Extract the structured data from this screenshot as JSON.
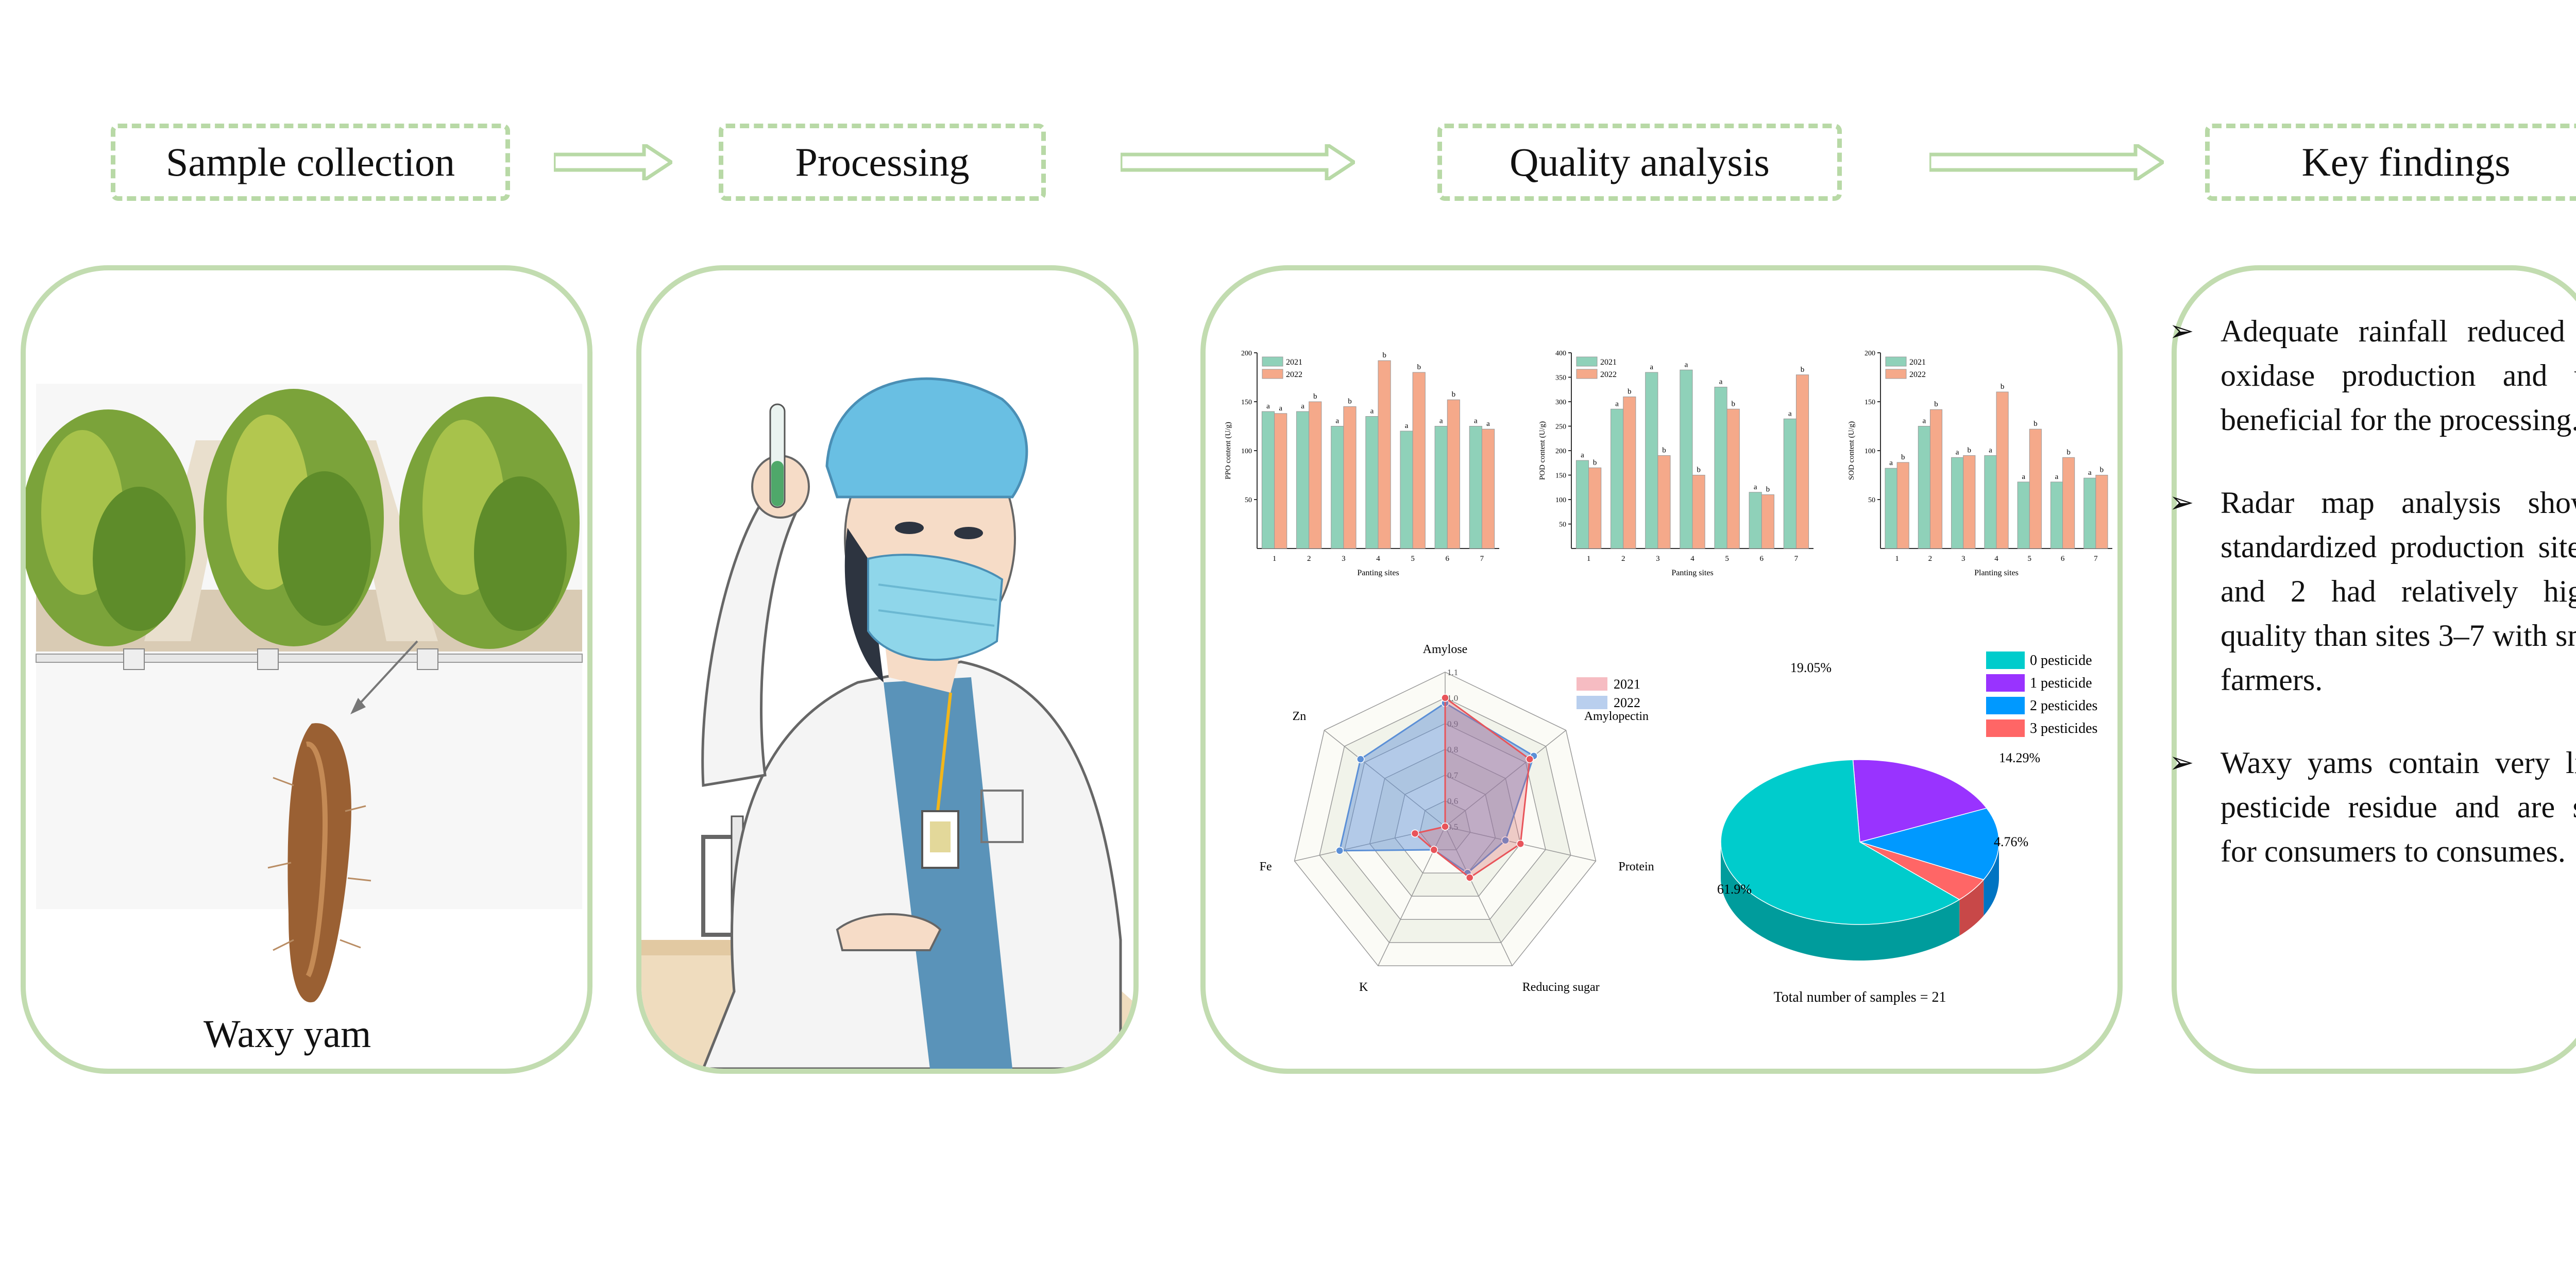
{
  "headers": [
    "Sample collection",
    "Processing",
    "Quality analysis",
    "Key findings"
  ],
  "yam_caption": "Waxy yam",
  "findings": [
    "Adequate rainfall reduced the oxidase production and was beneficial for the processing.",
    "Radar map analysis showed standardized production sites 1 and 2 had relatively higher quality than sites 3–7 with small farmers.",
    "Waxy yams contain very little pesticide residue and are safe for consumers to consumes."
  ],
  "colors": {
    "border": "#c2dcb0",
    "header_dash": "#b8d9a6",
    "bar_2021": "#8fd1b9",
    "bar_2022": "#f5a98a",
    "radar_2021": "#e8545a",
    "radar_2022": "#5b8fd6"
  },
  "chart_data": [
    {
      "type": "bar",
      "title": "",
      "xlabel": "Panting sites",
      "ylabel": "PPO content (U/g)",
      "ylim": [
        0,
        200
      ],
      "yticks": [
        50,
        100,
        150,
        200
      ],
      "categories": [
        "1",
        "2",
        "3",
        "4",
        "5",
        "6",
        "7"
      ],
      "series": [
        {
          "name": "2021",
          "values": [
            140,
            140,
            125,
            135,
            120,
            125,
            125
          ],
          "letters": [
            "a",
            "a",
            "a",
            "a",
            "a",
            "a",
            "a"
          ]
        },
        {
          "name": "2022",
          "values": [
            138,
            150,
            145,
            192,
            180,
            152,
            122
          ],
          "letters": [
            "a",
            "b",
            "b",
            "b",
            "b",
            "b",
            "a"
          ]
        }
      ]
    },
    {
      "type": "bar",
      "title": "",
      "xlabel": "Panting sites",
      "ylabel": "POD content (U/g)",
      "ylim": [
        0,
        400
      ],
      "yticks": [
        50,
        100,
        150,
        200,
        250,
        300,
        350,
        400
      ],
      "categories": [
        "1",
        "2",
        "3",
        "4",
        "5",
        "6",
        "7"
      ],
      "series": [
        {
          "name": "2021",
          "values": [
            180,
            285,
            360,
            365,
            330,
            115,
            265
          ],
          "letters": [
            "a",
            "a",
            "a",
            "a",
            "a",
            "a",
            "a"
          ]
        },
        {
          "name": "2022",
          "values": [
            165,
            310,
            190,
            150,
            285,
            110,
            355
          ],
          "letters": [
            "b",
            "b",
            "b",
            "b",
            "b",
            "b",
            "b"
          ]
        }
      ]
    },
    {
      "type": "bar",
      "title": "",
      "xlabel": "Planting sites",
      "ylabel": "SOD content (U/g)",
      "ylim": [
        0,
        200
      ],
      "yticks": [
        50,
        100,
        150,
        200
      ],
      "categories": [
        "1",
        "2",
        "3",
        "4",
        "5",
        "6",
        "7"
      ],
      "series": [
        {
          "name": "2021",
          "values": [
            82,
            125,
            93,
            95,
            68,
            68,
            72
          ],
          "letters": [
            "a",
            "a",
            "a",
            "a",
            "a",
            "a",
            "a"
          ]
        },
        {
          "name": "2022",
          "values": [
            88,
            142,
            95,
            160,
            122,
            93,
            75
          ],
          "letters": [
            "b",
            "b",
            "b",
            "b",
            "b",
            "b",
            "b"
          ]
        }
      ]
    },
    {
      "type": "radar",
      "title": "",
      "axes": [
        "Amylose",
        "Amylopectin",
        "Protein",
        "Reducing sugar",
        "K",
        "Fe",
        "Zn"
      ],
      "rlim": [
        0.5,
        1.1
      ],
      "rticks": [
        "0.5",
        "0.6",
        "0.7",
        "0.8",
        "0.9",
        "1.0",
        "1.1"
      ],
      "series": [
        {
          "name": "2021",
          "values": [
            1.0,
            0.92,
            0.8,
            0.72,
            0.6,
            0.62,
            0.5
          ]
        },
        {
          "name": "2022",
          "values": [
            0.98,
            0.94,
            0.74,
            0.7,
            0.6,
            0.92,
            0.92
          ]
        }
      ]
    },
    {
      "type": "pie",
      "title": "",
      "labels": [
        "0 pesticide",
        "1 pesticide",
        "2 pesticides",
        "3 pesticides"
      ],
      "values": [
        61.9,
        19.05,
        14.29,
        4.76
      ],
      "value_labels": [
        "61.9%",
        "19.05%",
        "14.29%",
        "4.76%"
      ],
      "colors": [
        "#00cccc",
        "#9933ff",
        "#0099ff",
        "#ff6666"
      ],
      "note": "Total number of samples = 21"
    }
  ]
}
